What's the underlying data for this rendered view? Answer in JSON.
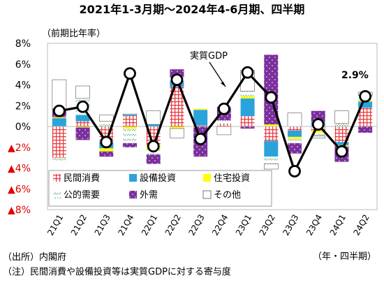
{
  "chart_data": {
    "type": "bar",
    "title": "2021年1-3月期～2024年4-6月期、四半期",
    "ylabel": "（前期比年率）",
    "xlabel": "（年・四半期）",
    "ylim": [
      -8,
      8
    ],
    "y_ticks": [
      {
        "value": 8,
        "label": "8%"
      },
      {
        "value": 6,
        "label": "6%"
      },
      {
        "value": 4,
        "label": "4%"
      },
      {
        "value": 2,
        "label": "2%"
      },
      {
        "value": 0,
        "label": "0%"
      },
      {
        "value": -2,
        "label": "▲2%"
      },
      {
        "value": -4,
        "label": "▲4%"
      },
      {
        "value": -6,
        "label": "▲6%"
      },
      {
        "value": -8,
        "label": "▲8%"
      }
    ],
    "categories": [
      "21Q1",
      "21Q2",
      "21Q3",
      "21Q4",
      "22Q1",
      "22Q2",
      "22Q3",
      "22Q4",
      "23Q1",
      "23Q2",
      "23Q3",
      "23Q4",
      "24Q1",
      "24Q2"
    ],
    "series": [
      {
        "name": "民間消費",
        "key": "consumption",
        "color": "#e8383d",
        "values": [
          -3.0,
          0.5,
          -1.5,
          1.0,
          -1.8,
          3.8,
          0.1,
          0.3,
          1.0,
          -1.4,
          -0.4,
          -0.4,
          -1.5,
          1.8
        ]
      },
      {
        "name": "設備投資",
        "key": "capex",
        "color": "#2aa3dc",
        "values": [
          0.8,
          0.6,
          -0.6,
          0.1,
          0.2,
          0.6,
          1.5,
          0.0,
          1.7,
          -1.5,
          -0.6,
          0.5,
          -0.3,
          0.6
        ]
      },
      {
        "name": "住宅投資",
        "key": "housing",
        "color": "#ffff00",
        "values": [
          0.1,
          -0.1,
          -0.3,
          -0.2,
          -0.4,
          -0.2,
          0.1,
          0.0,
          0.2,
          0.2,
          -0.2,
          -0.2,
          -0.1,
          0.1
        ]
      },
      {
        "name": "公的需要",
        "key": "public",
        "color": "#3a9a5a",
        "values": [
          -0.5,
          1.6,
          0.5,
          -1.4,
          -0.5,
          0.3,
          0.0,
          0.3,
          0.5,
          -0.7,
          -0.4,
          -0.3,
          0.3,
          0.5
        ]
      },
      {
        "name": "外需",
        "key": "external",
        "color": "#7b2f9d",
        "values": [
          0.8,
          -1.2,
          -0.5,
          -0.4,
          -0.9,
          0.8,
          -2.9,
          1.3,
          -0.2,
          6.7,
          -1.0,
          1.0,
          -1.5,
          -0.6
        ]
      },
      {
        "name": "その他",
        "key": "other",
        "color": "#ffffff",
        "values": [
          2.8,
          1.2,
          0.6,
          0.1,
          1.3,
          -0.9,
          0.0,
          -0.8,
          2.0,
          -0.5,
          1.3,
          -0.2,
          1.2,
          0.3
        ]
      }
    ],
    "gdp": {
      "name": "実質GDP",
      "values": [
        1.5,
        1.9,
        -1.5,
        5.1,
        -1.9,
        4.5,
        -1.2,
        1.7,
        5.2,
        2.8,
        -4.3,
        0.2,
        -2.4,
        2.9
      ]
    },
    "annotations": {
      "gdp_label": "実質GDP",
      "last_value_label": "2.9%"
    },
    "legend_position": "bottom-left, inside plot",
    "grid": false
  },
  "footer": {
    "source": "（出所）内閣府",
    "note": "（注）民間消費や設備投資等は実質GDPに対する寄与度"
  }
}
